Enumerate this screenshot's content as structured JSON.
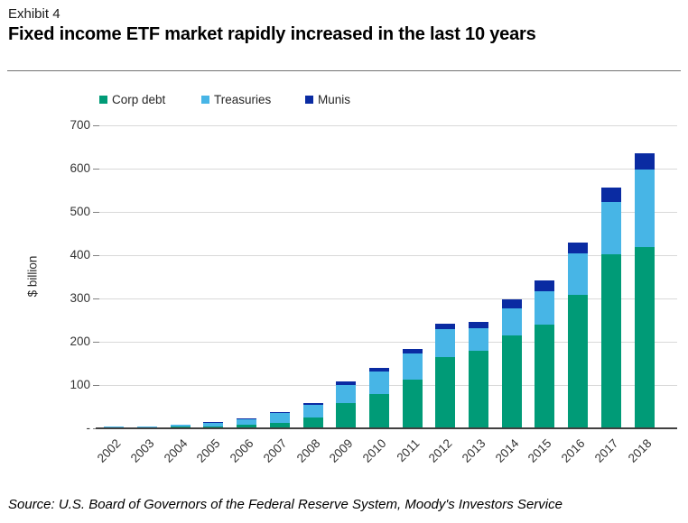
{
  "header": {
    "exhibit": "Exhibit 4",
    "title": "Fixed income ETF market rapidly increased in the last 10 years"
  },
  "source": "Source: U.S. Board of Governors of the Federal Reserve System, Moody's Investors Service",
  "colors": {
    "corp_debt": "#009B77",
    "treasuries": "#47B5E6",
    "munis": "#0A2BA2",
    "gridline": "#D9D9D9",
    "axis": "#404040",
    "divider": "#737373"
  },
  "chart_data": {
    "type": "bar",
    "stacked": true,
    "title": "Fixed income ETF market rapidly increased in the last 10 years",
    "xlabel": "",
    "ylabel": "$ billion",
    "ylim": [
      0,
      700
    ],
    "ytick_interval": 100,
    "ytick_labels": [
      "-",
      "100",
      "200",
      "300",
      "400",
      "500",
      "600",
      "700"
    ],
    "grid": true,
    "legend_position": "top",
    "categories": [
      "2002",
      "2003",
      "2004",
      "2005",
      "2006",
      "2007",
      "2008",
      "2009",
      "2010",
      "2011",
      "2012",
      "2013",
      "2014",
      "2015",
      "2016",
      "2017",
      "2018"
    ],
    "series": [
      {
        "name": "Corp debt",
        "color": "#009B77",
        "values": [
          1,
          2,
          4,
          4,
          8,
          13,
          25,
          58,
          79,
          112,
          165,
          179,
          214,
          240,
          309,
          403,
          419
        ]
      },
      {
        "name": "Treasuries",
        "color": "#47B5E6",
        "values": [
          4,
          3,
          5,
          10,
          13,
          23,
          29,
          42,
          52,
          62,
          64,
          53,
          63,
          78,
          95,
          120,
          179
        ]
      },
      {
        "name": "Munis",
        "color": "#0A2BA2",
        "values": [
          0,
          0,
          0,
          1,
          1,
          1,
          5,
          8,
          8,
          10,
          13,
          14,
          21,
          23,
          26,
          34,
          38
        ]
      }
    ],
    "totals": [
      5,
      5,
      9,
      15,
      22,
      37,
      59,
      108,
      139,
      184,
      242,
      246,
      298,
      341,
      430,
      557,
      636
    ]
  }
}
